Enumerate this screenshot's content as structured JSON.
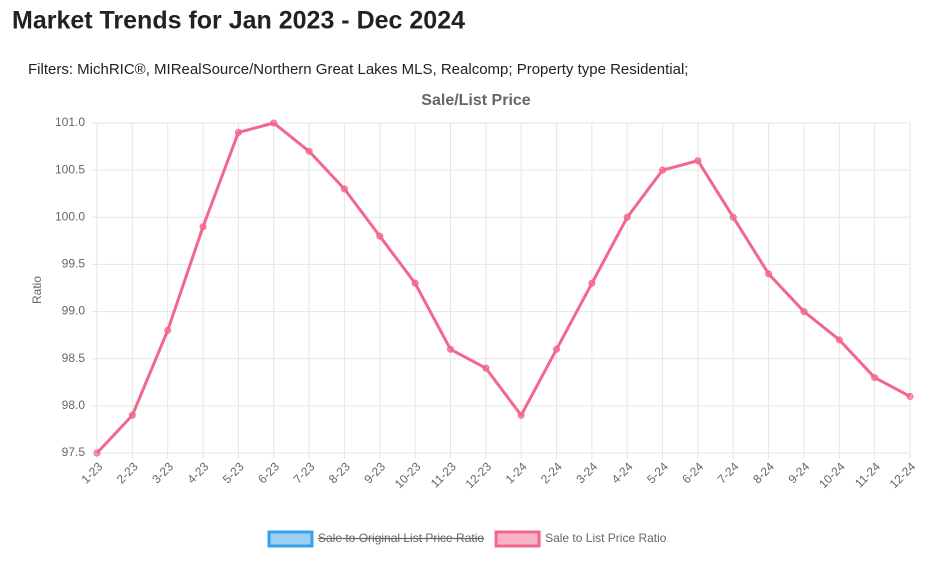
{
  "header": {
    "title": "Market Trends for Jan 2023 - Dec 2024",
    "filters": "Filters: MichRIC®, MIRealSource/Northern Great Lakes MLS, Realcomp; Property type Residential;"
  },
  "chart_data": {
    "type": "line",
    "title": "Sale/List Price",
    "y_label": "Ratio",
    "categories": [
      "1-23",
      "2-23",
      "3-23",
      "4-23",
      "5-23",
      "6-23",
      "7-23",
      "8-23",
      "9-23",
      "10-23",
      "11-23",
      "12-23",
      "1-24",
      "2-24",
      "3-24",
      "4-24",
      "5-24",
      "6-24",
      "7-24",
      "8-24",
      "9-24",
      "10-24",
      "11-24",
      "12-24"
    ],
    "series": [
      {
        "name": "Sale to Original List Price Ratio",
        "color": "#36a2eb",
        "hidden": true
      },
      {
        "name": "Sale to List Price Ratio",
        "color": "#f2678b",
        "values": [
          97.5,
          97.9,
          98.8,
          99.9,
          100.9,
          101.0,
          100.7,
          100.3,
          99.8,
          99.3,
          98.6,
          98.4,
          97.9,
          98.6,
          99.3,
          100.0,
          100.5,
          100.6,
          100.0,
          99.4,
          99.0,
          98.7,
          98.3,
          98.1
        ]
      }
    ],
    "ylim": [
      97.5,
      101.0
    ],
    "yticks": [
      97.5,
      {
        "value": 98,
        "label": "98.0"
      },
      98.5,
      {
        "value": 99,
        "label": "99.0"
      },
      99.5,
      {
        "value": 100,
        "label": "100.0"
      },
      100.5,
      {
        "value": 101,
        "label": "101.0"
      }
    ],
    "grid": true,
    "legend": "bottom"
  }
}
